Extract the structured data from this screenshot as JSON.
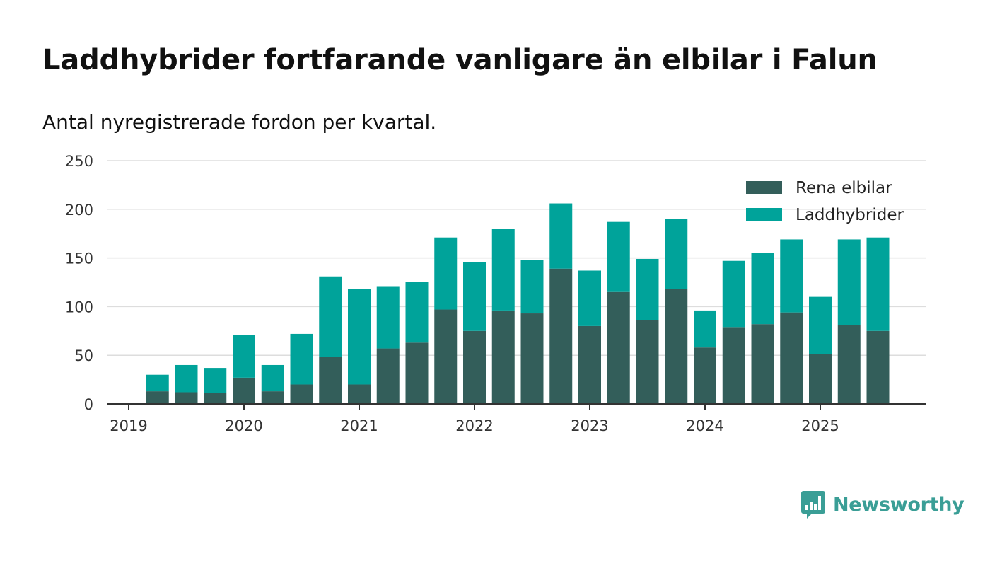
{
  "title": "Laddhybrider fortfarande vanligare än elbilar i Falun",
  "subtitle": "Antal nyregistrerade fordon per kvartal.",
  "brand": "Newsworthy",
  "colors": {
    "elbilar": "#335e5a",
    "laddhybrider": "#00a39a",
    "grid": "#dddddd",
    "axis": "#333333",
    "brand": "#3a9e96"
  },
  "chart_data": {
    "type": "bar",
    "stacked": true,
    "x": [
      "2019-Q2",
      "2019-Q3",
      "2019-Q4",
      "2020-Q1",
      "2020-Q2",
      "2020-Q3",
      "2020-Q4",
      "2021-Q1",
      "2021-Q2",
      "2021-Q3",
      "2021-Q4",
      "2022-Q1",
      "2022-Q2",
      "2022-Q3",
      "2022-Q4",
      "2023-Q1",
      "2023-Q2",
      "2023-Q3",
      "2023-Q4",
      "2024-Q1",
      "2024-Q2",
      "2024-Q3",
      "2024-Q4",
      "2025-Q1",
      "2025-Q2",
      "2025-Q3"
    ],
    "series": [
      {
        "name": "Rena elbilar",
        "values": [
          13,
          12,
          11,
          27,
          13,
          20,
          48,
          20,
          57,
          63,
          97,
          75,
          96,
          93,
          139,
          80,
          115,
          86,
          118,
          58,
          79,
          82,
          94,
          51,
          81,
          75
        ]
      },
      {
        "name": "Laddhybrider",
        "values": [
          17,
          28,
          26,
          44,
          27,
          52,
          83,
          98,
          64,
          62,
          74,
          71,
          84,
          55,
          67,
          57,
          72,
          63,
          72,
          38,
          68,
          73,
          75,
          59,
          88,
          96
        ]
      }
    ],
    "xticks": [
      "2019",
      "2020",
      "2021",
      "2022",
      "2023",
      "2024",
      "2025"
    ],
    "yticks": [
      0,
      50,
      100,
      150,
      200,
      250
    ],
    "ylim": [
      0,
      250
    ],
    "legend_position": "top-right",
    "grid": "horizontal"
  }
}
